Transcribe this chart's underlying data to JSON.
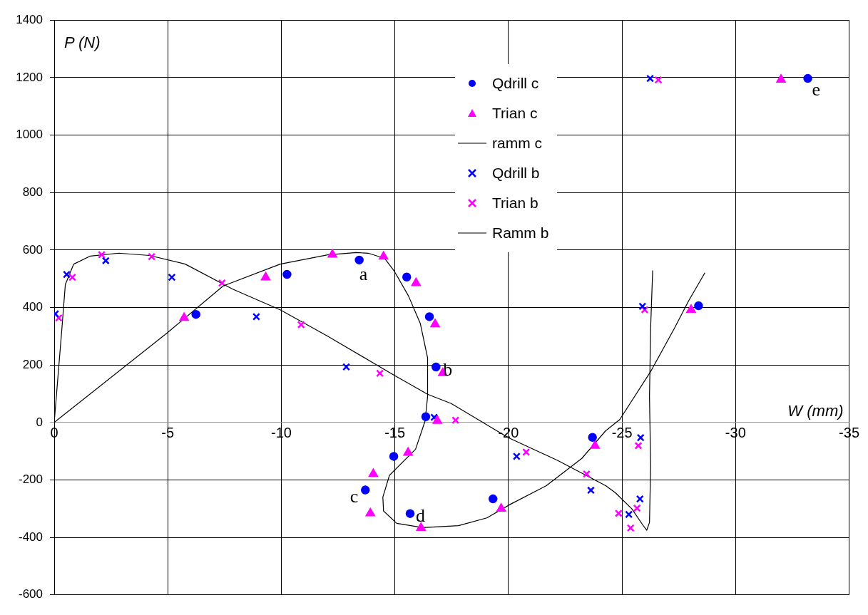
{
  "chart_data": {
    "type": "scatter",
    "xlabel": "W (mm)",
    "ylabel": "P (N)",
    "xlim": [
      0,
      -35
    ],
    "xticks": [
      0,
      -5,
      -10,
      -15,
      -20,
      -25,
      -30,
      -35
    ],
    "ylim": [
      -600,
      1400
    ],
    "yticks": [
      -600,
      -400,
      -200,
      0,
      200,
      400,
      600,
      800,
      1000,
      1200,
      1400
    ],
    "grid": true,
    "legend": "top",
    "annotations": [
      {
        "text": "a",
        "x": -13.43,
        "y": 565
      },
      {
        "text": "b",
        "x": -16.81,
        "y": 193
      },
      {
        "text": "c",
        "x": -13.7,
        "y": -235
      },
      {
        "text": "d",
        "x": -15.67,
        "y": -317
      },
      {
        "text": "e",
        "x": -33.18,
        "y": 1197
      }
    ],
    "series": [
      {
        "name": "Qdrill c",
        "type": "scatter",
        "marker": "circle",
        "color": "#0000ff",
        "x": [
          -6.24,
          -10.25,
          -13.43,
          -15.52,
          -16.52,
          -16.81,
          -16.36,
          -14.95,
          -13.7,
          -15.67,
          -19.32,
          -23.7,
          -28.37,
          -33.18
        ],
        "values": [
          376,
          515,
          565,
          506,
          368,
          193,
          20,
          -118,
          -235,
          -317,
          -266,
          -52,
          406,
          1197
        ]
      },
      {
        "name": "Trian c",
        "type": "scatter",
        "marker": "triangle",
        "color": "#ff00ff",
        "x": [
          -5.72,
          -9.31,
          -12.25,
          -14.5,
          -15.93,
          -16.77,
          -17.11,
          -16.87,
          -15.58,
          -14.05,
          -13.92,
          -16.15,
          -19.68,
          -23.81,
          -28.04,
          -32.0
        ],
        "values": [
          364,
          505,
          584,
          577,
          485,
          342,
          172,
          6,
          -105,
          -179,
          -316,
          -367,
          -300,
          -81,
          392,
          1193
        ]
      },
      {
        "name": "ramm c",
        "type": "line",
        "marker": "none",
        "color": "#000000",
        "x": [
          0,
          -4.98,
          -7.44,
          -9.95,
          -12.04,
          -13.3,
          -13.82,
          -14.55,
          -14.97,
          -15.6,
          -16.12,
          -16.44,
          -16.44,
          -16.33,
          -15.91,
          -14.76,
          -14.47,
          -14.5,
          -15.08,
          -16.23,
          -17.8,
          -19.05,
          -20.1,
          -21.67,
          -23.23,
          -24.28,
          -24.9,
          -26.26,
          -27.31,
          -27.94,
          -28.65
        ],
        "values": [
          0,
          312,
          475,
          551,
          583,
          591,
          589,
          571,
          527,
          440,
          344,
          225,
          90,
          5,
          -93,
          -184,
          -260,
          -308,
          -351,
          -366,
          -359,
          -332,
          -284,
          -220,
          -125,
          -29,
          10,
          177,
          328,
          424,
          521
        ]
      },
      {
        "name": "Qdrill b",
        "type": "scatter",
        "marker": "cross",
        "color": "#0000ff",
        "x": [
          -0.05,
          -0.55,
          -2.27,
          -5.18,
          -8.9,
          -12.86,
          -16.73,
          -20.36,
          -23.63,
          -25.82,
          -25.79,
          -25.3,
          -25.9,
          -26.24
        ],
        "values": [
          378,
          515,
          563,
          505,
          368,
          193,
          18,
          -118,
          -236,
          -53,
          -266,
          -320,
          404,
          1197
        ]
      },
      {
        "name": "Trian b",
        "type": "scatter",
        "marker": "cross",
        "color": "#ff00ff",
        "x": [
          -0.2,
          -0.8,
          -2.09,
          -4.29,
          -7.39,
          -10.87,
          -14.34,
          -17.67,
          -20.78,
          -23.44,
          -24.85,
          -25.38,
          -25.66,
          -25.72,
          -26.0,
          -26.6
        ],
        "values": [
          364,
          505,
          584,
          577,
          485,
          340,
          171,
          8,
          -103,
          -179,
          -316,
          -367,
          -298,
          -81,
          392,
          1192
        ]
      },
      {
        "name": "Ramm b",
        "type": "line",
        "marker": "none",
        "color": "#000000",
        "x": [
          0,
          -0.34,
          -0.49,
          -0.86,
          -1.59,
          -2.84,
          -4.2,
          -5.77,
          -7.86,
          -9.95,
          -12.04,
          -14.87,
          -16.44,
          -17.48,
          -20.0,
          -22.19,
          -24.28,
          -24.7,
          -25.43,
          -25.9,
          -26.09,
          -26.21,
          -26.26,
          -26.21,
          -26.26,
          -26.35
        ],
        "values": [
          0,
          328,
          480,
          551,
          579,
          589,
          581,
          551,
          464,
          392,
          300,
          169,
          98,
          66,
          -53,
          -133,
          -220,
          -244,
          -300,
          -355,
          -375,
          -348,
          -149,
          90,
          328,
          529
        ]
      }
    ]
  }
}
